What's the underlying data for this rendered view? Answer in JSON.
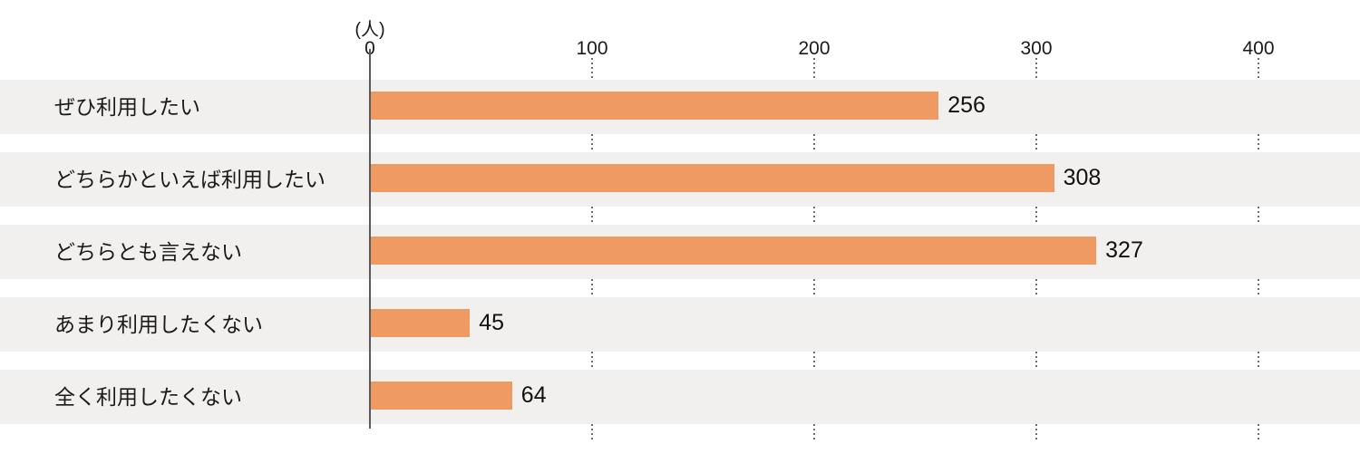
{
  "chart_data": {
    "type": "bar",
    "orientation": "horizontal",
    "title": "",
    "unit_label": "(人)",
    "categories": [
      "ぜひ利用したい",
      "どちらかといえば利用したい",
      "どちらとも言えない",
      "あまり利用したくない",
      "全く利用したくない"
    ],
    "values": [
      256,
      308,
      327,
      45,
      64
    ],
    "value_labels": [
      "256",
      "308",
      "327",
      "45",
      "64"
    ],
    "xticks": [
      0,
      100,
      200,
      300,
      400
    ],
    "xlim": [
      0,
      446
    ],
    "grid": "dotted-vertical-ticks",
    "legend": "none",
    "colors": {
      "bar": "#EF9A63",
      "row_band": "#F1F0EE",
      "axis_line": "#58595B",
      "dotted_tick": "#6d6e71",
      "text": "#1a1a1a",
      "background": "#ffffff"
    }
  }
}
